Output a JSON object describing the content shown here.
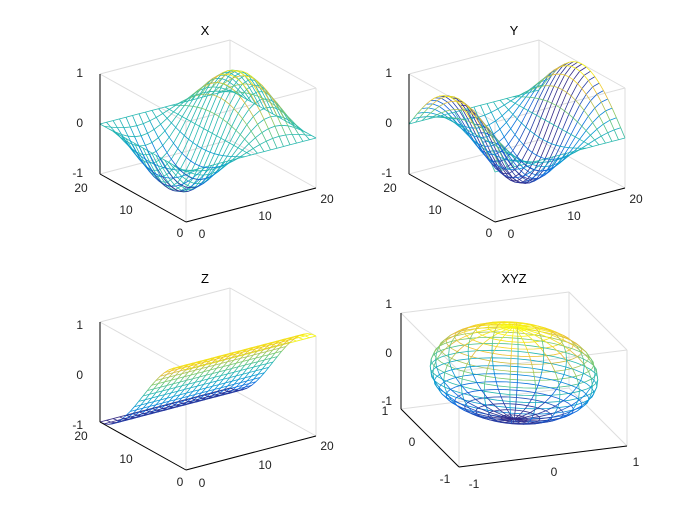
{
  "figure": {
    "background": "#ffffff",
    "colormap": "parula",
    "grid": true
  },
  "chart_data": [
    {
      "name": "X",
      "type": "surface-mesh",
      "title": "X",
      "surface": "X = -sin(u) * sin(pi*v)  (u = pi*i/10, v = j/20)",
      "grid_size": [
        21,
        21
      ],
      "xlim": [
        0,
        20
      ],
      "ylim": [
        0,
        20
      ],
      "zlim": [
        -1,
        1
      ],
      "xticks": [
        "0",
        "10",
        "20"
      ],
      "yticks": [
        "0",
        "10",
        "20"
      ],
      "zticks": [
        "-1",
        "0",
        "1"
      ]
    },
    {
      "name": "Y",
      "type": "surface-mesh",
      "title": "Y",
      "surface": "Y = cos(u) * sin(pi*v)  (u = pi*i/10, v = j/20)",
      "grid_size": [
        21,
        21
      ],
      "xlim": [
        0,
        20
      ],
      "ylim": [
        0,
        20
      ],
      "zlim": [
        -1,
        1
      ],
      "xticks": [
        "0",
        "10",
        "20"
      ],
      "yticks": [
        "0",
        "10",
        "20"
      ],
      "zticks": [
        "-1",
        "0",
        "1"
      ]
    },
    {
      "name": "Z",
      "type": "surface-mesh",
      "title": "Z",
      "surface": "Z = cos(pi*v)  (v = j/20)",
      "grid_size": [
        21,
        21
      ],
      "xlim": [
        0,
        20
      ],
      "ylim": [
        0,
        20
      ],
      "zlim": [
        -1,
        1
      ],
      "xticks": [
        "0",
        "10",
        "20"
      ],
      "yticks": [
        "0",
        "10",
        "20"
      ],
      "zticks": [
        "-1",
        "0",
        "1"
      ]
    },
    {
      "name": "XYZ",
      "type": "surface-mesh",
      "title": "XYZ",
      "surface": "unit sphere (X, Y, Z) from the three panels above",
      "grid_size": [
        21,
        21
      ],
      "xlim": [
        -1,
        1
      ],
      "ylim": [
        -1,
        1
      ],
      "zlim": [
        -1,
        1
      ],
      "xticks": [
        "-1",
        "0",
        "1"
      ],
      "yticks": [
        "-1",
        "0",
        "1"
      ],
      "zticks": [
        "-1",
        "0",
        "1"
      ]
    }
  ]
}
